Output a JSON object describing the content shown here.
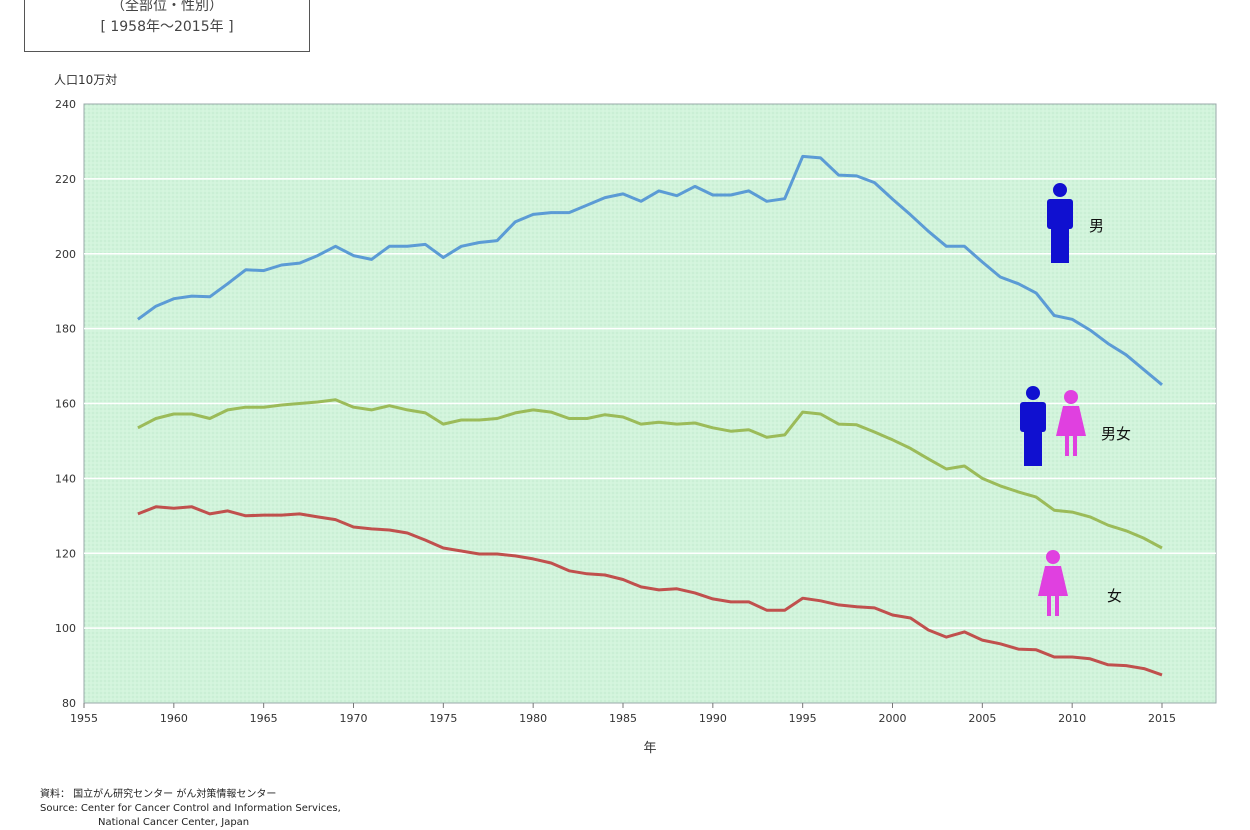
{
  "header": {
    "subtitle": "（全部位・性別）",
    "period": "[  1958年～2015年  ]"
  },
  "source": {
    "line1": "資料： 国立がん研究センター がん対策情報センター",
    "line2": "Source: Center for Cancer Control and Information Services,",
    "line3": "National Cancer Center, Japan"
  },
  "chart_data": {
    "type": "line",
    "ylabel": "人口10万対",
    "xlabel": "年",
    "xlim": [
      1955,
      2018
    ],
    "ylim": [
      80,
      240
    ],
    "xticks": [
      1955,
      1960,
      1965,
      1970,
      1975,
      1980,
      1985,
      1990,
      1995,
      2000,
      2005,
      2010,
      2015
    ],
    "yticks": [
      80,
      100,
      120,
      140,
      160,
      180,
      200,
      220,
      240
    ],
    "grid": "horizontal",
    "x_start": 1958,
    "series": [
      {
        "name": "男",
        "color": "#5b9bd5",
        "icon": "male-figure-icon",
        "values": [
          182.5,
          186,
          188,
          188.7,
          188.5,
          192,
          195.7,
          195.5,
          197,
          197.5,
          199.5,
          202,
          199.5,
          198.5,
          202,
          202,
          202.5,
          199,
          202,
          203,
          203.5,
          208.5,
          210.5,
          211,
          211,
          213,
          215,
          216,
          214,
          216.8,
          215.5,
          218,
          215.7,
          215.7,
          216.8,
          214,
          214.7,
          226,
          225.6,
          221,
          220.8,
          219,
          214.6,
          210.4,
          206,
          202,
          202,
          197.8,
          193.8,
          192,
          189.5,
          183.5,
          182.5,
          179.6,
          176,
          173,
          169,
          165
        ]
      },
      {
        "name": "男女",
        "color": "#9bbb59",
        "icon": "male-female-figures-icon",
        "values": [
          153.5,
          156,
          157.2,
          157.2,
          156,
          158.3,
          159,
          159,
          159.6,
          160,
          160.4,
          161,
          159,
          158.3,
          159.4,
          158.3,
          157.5,
          154.5,
          155.6,
          155.6,
          156,
          157.5,
          158.3,
          157.7,
          156,
          156,
          157,
          156.4,
          154.5,
          155,
          154.5,
          154.8,
          153.5,
          152.6,
          153,
          151,
          151.6,
          157.7,
          157.2,
          154.5,
          154.3,
          152.4,
          150.3,
          148,
          145.2,
          142.5,
          143.3,
          140,
          138,
          136.4,
          135,
          131.5,
          131,
          129.7,
          127.5,
          126,
          124,
          121.4
        ]
      },
      {
        "name": "女",
        "color": "#c0504d",
        "icon": "female-figure-icon",
        "values": [
          130.5,
          132.4,
          132,
          132.4,
          130.5,
          131.3,
          130,
          130.2,
          130.2,
          130.5,
          129.7,
          129,
          127,
          126.5,
          126.2,
          125.4,
          123.5,
          121.4,
          120.6,
          119.8,
          119.8,
          119.3,
          118.5,
          117.4,
          115.3,
          114.5,
          114.2,
          113,
          111,
          110.2,
          110.5,
          109.4,
          107.8,
          107,
          107,
          104.8,
          104.8,
          108,
          107.3,
          106.2,
          105.7,
          105.4,
          103.5,
          102.7,
          99.5,
          97.6,
          99,
          96.8,
          95.8,
          94.4,
          94.2,
          92.3,
          92.3,
          91.8,
          90.2,
          90,
          89.2,
          87.5
        ]
      }
    ]
  }
}
